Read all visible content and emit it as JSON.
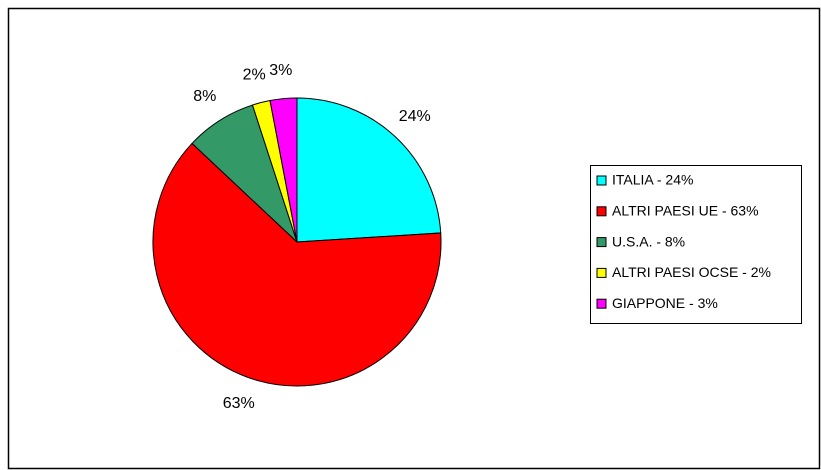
{
  "chart_data": {
    "type": "pie",
    "categories": [
      "ITALIA - 24%",
      "ALTRI PAESI UE - 63%",
      "U.S.A. - 8%",
      "ALTRI PAESI OCSE - 2%",
      "GIAPPONE - 3%"
    ],
    "values": [
      24,
      63,
      8,
      2,
      3
    ],
    "value_labels": [
      "24%",
      "63%",
      "8%",
      "2%",
      "3%"
    ],
    "colors": [
      "#00ffff",
      "#ff0000",
      "#339966",
      "#ffff00",
      "#ff00ff"
    ],
    "legend": "right"
  }
}
